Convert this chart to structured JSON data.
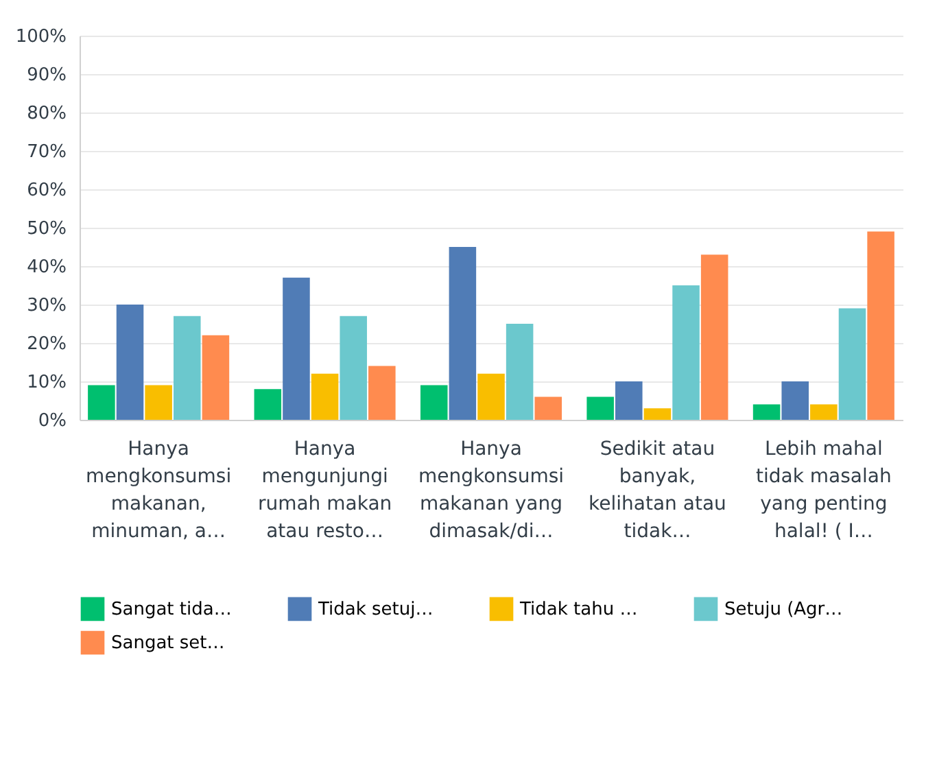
{
  "chart_data": {
    "type": "bar",
    "categories": [
      "Hanya mengkonsumsi makanan, minuman, a…",
      "Hanya mengunjungi rumah makan atau resto…",
      "Hanya mengkonsumsi makanan yang dimasak/di…",
      "Sedikit atau banyak, kelihatan atau tidak…",
      "Lebih mahal tidak masalah yang penting halal! ( I…"
    ],
    "series": [
      {
        "name": "Sangat tida…",
        "color": "#00bf6f",
        "values": [
          9,
          8,
          9,
          6,
          4
        ]
      },
      {
        "name": "Tidak setuj…",
        "color": "#507cb6",
        "values": [
          30,
          37,
          45,
          10,
          10
        ]
      },
      {
        "name": "Tidak tahu …",
        "color": "#f9be00",
        "values": [
          9,
          12,
          12,
          3,
          4
        ]
      },
      {
        "name": "Setuju (Agr…",
        "color": "#6bc8cd",
        "values": [
          27,
          27,
          25,
          35,
          29
        ]
      },
      {
        "name": "Sangat set…",
        "color": "#ff8b4f",
        "values": [
          22,
          14,
          6,
          43,
          49
        ]
      }
    ],
    "ylim": [
      0,
      100
    ],
    "yticks": [
      {
        "value": 0,
        "label": "0%"
      },
      {
        "value": 10,
        "label": "10%"
      },
      {
        "value": 20,
        "label": "20%"
      },
      {
        "value": 30,
        "label": "30%"
      },
      {
        "value": 40,
        "label": "40%"
      },
      {
        "value": 50,
        "label": "50%"
      },
      {
        "value": 60,
        "label": "60%"
      },
      {
        "value": 70,
        "label": "70%"
      },
      {
        "value": 80,
        "label": "80%"
      },
      {
        "value": 90,
        "label": "90%"
      },
      {
        "value": 100,
        "label": "100%"
      }
    ],
    "grid": "y",
    "legend": "bottom"
  }
}
